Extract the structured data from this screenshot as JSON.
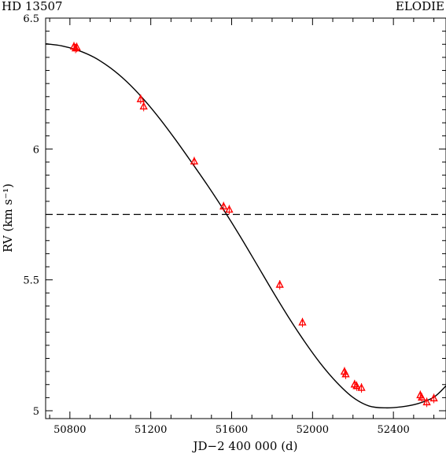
{
  "header": {
    "left_label": "HD 13507",
    "right_label": "ELODIE"
  },
  "chart_data": {
    "type": "scatter",
    "xlabel": "JD−2 400 000  (d)",
    "ylabel": "RV  (km s⁻¹)",
    "xlim": [
      50680,
      52660
    ],
    "ylim": [
      4.97,
      6.5
    ],
    "xticks": [
      50800,
      51200,
      51600,
      52000,
      52400
    ],
    "xtick_labels": [
      "50800",
      "51200",
      "51600",
      "52000",
      "52400"
    ],
    "yticks": [
      5,
      5.5,
      6,
      6.5
    ],
    "ytick_labels": [
      "5",
      "5.5",
      "6",
      "6.5"
    ],
    "reference_line": {
      "y": 5.75,
      "style": "dashed"
    },
    "series": [
      {
        "marker": "triangle",
        "color": "#ff0000",
        "x": [
          50820,
          50828,
          50834,
          51150,
          51165,
          51415,
          51560,
          51588,
          51838,
          51950,
          52158,
          52164,
          52208,
          52218,
          52242,
          52533,
          52540,
          52565,
          52600
        ],
        "y": [
          6.391,
          6.384,
          6.388,
          6.19,
          6.162,
          5.952,
          5.78,
          5.768,
          5.481,
          5.337,
          5.149,
          5.139,
          5.1,
          5.094,
          5.087,
          5.059,
          5.05,
          5.032,
          5.047
        ]
      }
    ],
    "model_curve": {
      "x": [
        50680,
        50760,
        50840,
        50920,
        51000,
        51080,
        51160,
        51240,
        51320,
        51400,
        51480,
        51560,
        51640,
        51720,
        51800,
        51880,
        51960,
        52040,
        52120,
        52200,
        52280,
        52360,
        52440,
        52520,
        52600,
        52660
      ],
      "y": [
        6.402,
        6.394,
        6.377,
        6.35,
        6.31,
        6.258,
        6.194,
        6.12,
        6.038,
        5.951,
        5.862,
        5.768,
        5.669,
        5.565,
        5.46,
        5.359,
        5.265,
        5.18,
        5.108,
        5.051,
        5.018,
        5.011,
        5.015,
        5.027,
        5.052,
        5.095
      ]
    }
  }
}
